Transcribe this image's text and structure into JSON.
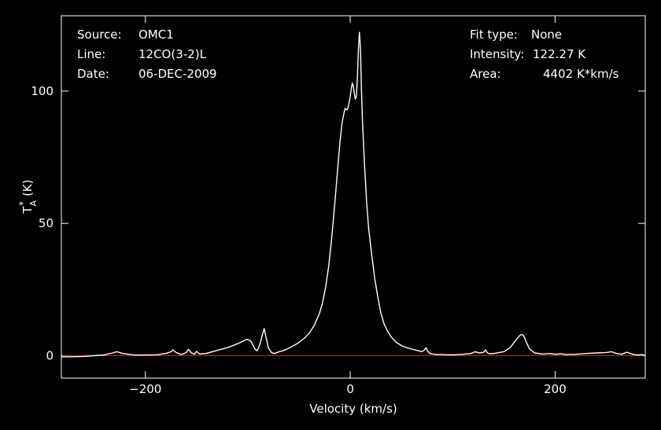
{
  "header": {
    "source_label": "Source:",
    "source_value": "OMC1",
    "line_label": "Line:",
    "line_value": "12CO(3-2)L",
    "date_label": "Date:",
    "date_value": "06-DEC-2009",
    "fit_label": "Fit type:",
    "fit_value": "None",
    "intensity_label": "Intensity:",
    "intensity_value": "122.27 K",
    "area_label": "Area:",
    "area_value": "4402 K*km/s"
  },
  "colors": {
    "background": "#000000",
    "axes": "#ffffff",
    "spectrum": "#ffffff",
    "baseline": "#e0202a"
  },
  "chart_data": {
    "type": "line",
    "xlabel": "Velocity (km/s)",
    "ylabel": "T_A^* (K)",
    "ylabel_main": "T",
    "ylabel_sub": "A",
    "ylabel_sup": "*",
    "ylabel_unit": "(K)",
    "xlim": [
      -282,
      288
    ],
    "ylim": [
      -8.5,
      128.5
    ],
    "xticks": [
      -200,
      0,
      200
    ],
    "xtick_labels": [
      "−200",
      "0",
      "200"
    ],
    "yticks": [
      0,
      50,
      100
    ],
    "ytick_labels": [
      "0",
      "50",
      "100"
    ],
    "grid": false,
    "baseline_value": 0,
    "series": [
      {
        "x": [
          -282,
          -260,
          -240,
          -232,
          -228,
          -222,
          -210,
          -190,
          -180,
          -175,
          -173,
          -170,
          -165,
          -160,
          -158,
          -155,
          -152,
          -150,
          -147,
          -140,
          -130,
          -120,
          -112,
          -106,
          -101,
          -97,
          -95,
          -93,
          -91,
          -90,
          -88,
          -86,
          -84,
          -82,
          -80,
          -77,
          -74,
          -70,
          -66,
          -60,
          -52,
          -45,
          -40,
          -35,
          -30,
          -27,
          -24,
          -21,
          -18,
          -15,
          -12,
          -10,
          -8,
          -6,
          -5,
          -4,
          -3,
          -2,
          -1,
          0,
          1,
          2,
          3,
          4,
          5,
          6,
          7,
          8,
          9,
          10,
          11,
          12,
          14,
          16,
          18,
          21,
          24,
          27,
          30,
          33,
          36,
          40,
          45,
          50,
          55,
          60,
          65,
          70,
          72,
          74,
          76,
          78,
          82,
          90,
          100,
          110,
          118,
          122,
          126,
          130,
          132,
          134,
          136,
          140,
          150,
          156,
          160,
          163,
          166,
          168,
          170,
          172,
          175,
          180,
          188,
          195,
          200,
          206,
          210,
          220,
          230,
          240,
          250,
          255,
          260,
          265,
          270,
          275,
          280,
          285,
          288
        ],
        "y": [
          -0.5,
          -0.3,
          0.3,
          1.0,
          1.5,
          0.8,
          0.2,
          0.3,
          0.8,
          1.5,
          2.2,
          1.2,
          0.4,
          1.2,
          2.4,
          1.0,
          0.5,
          1.6,
          0.6,
          0.9,
          2.0,
          3.0,
          4.2,
          5.2,
          6.2,
          5.5,
          4.0,
          2.5,
          1.8,
          2.5,
          4.5,
          7.5,
          10.2,
          6.5,
          3.0,
          1.2,
          0.8,
          1.4,
          1.8,
          2.8,
          4.5,
          6.5,
          8.5,
          11.5,
          16.0,
          20.0,
          26.0,
          34.0,
          45.0,
          58.0,
          72.0,
          81.0,
          88.0,
          92.0,
          93.5,
          93.0,
          93.0,
          94.0,
          96.0,
          98.0,
          101.0,
          103.0,
          102.0,
          99.0,
          97.0,
          98.0,
          105.0,
          116.0,
          122.3,
          116.0,
          100.0,
          88.0,
          72.0,
          58.0,
          48.0,
          38.0,
          29.0,
          22.0,
          16.0,
          12.0,
          9.5,
          7.0,
          5.0,
          3.8,
          3.0,
          2.5,
          2.0,
          1.5,
          2.0,
          3.0,
          1.5,
          0.8,
          0.5,
          0.4,
          0.3,
          0.5,
          0.8,
          1.5,
          1.0,
          1.2,
          2.2,
          1.0,
          0.7,
          0.8,
          1.5,
          3.0,
          5.0,
          6.5,
          7.8,
          8.0,
          7.0,
          5.0,
          2.5,
          1.0,
          0.6,
          0.8,
          0.5,
          0.7,
          0.4,
          0.5,
          0.8,
          1.0,
          1.2,
          1.5,
          0.8,
          0.5,
          1.3,
          0.6,
          0.2,
          0.4,
          0.0
        ]
      }
    ]
  }
}
